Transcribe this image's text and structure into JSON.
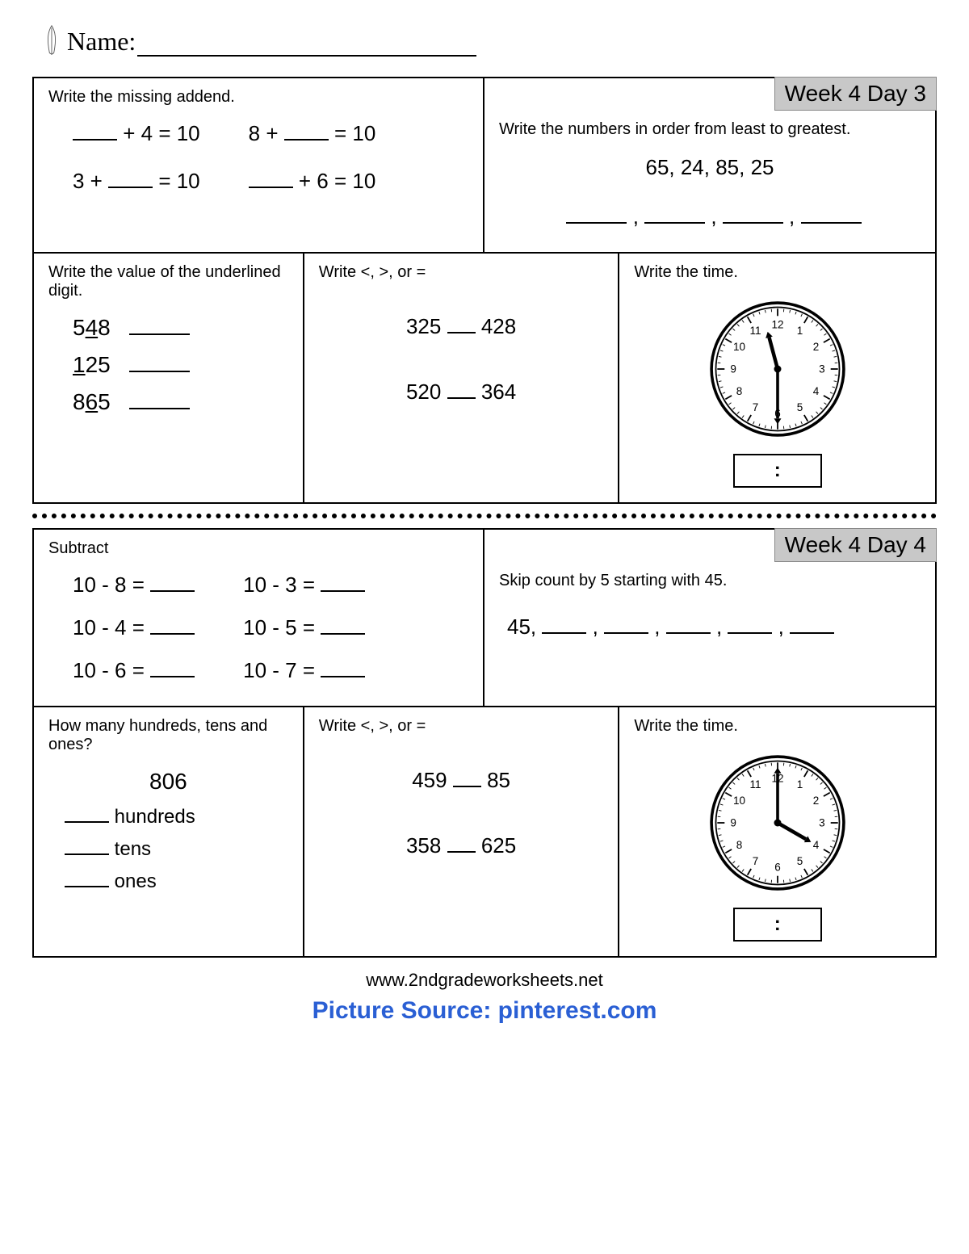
{
  "name_label": "Name:",
  "day3": {
    "tag": "Week 4 Day 3",
    "box1": {
      "instr": "Write the missing addend.",
      "p1a": "___ + 4 = 10",
      "p1b": "8 + ___ = 10",
      "p2a": "3 + ___ = 10",
      "p2b": "___ + 6 = 10"
    },
    "box2": {
      "instr": "Write the numbers in order from least to greatest.",
      "numbers": "65, 24, 85, 25"
    },
    "box3": {
      "instr": "Write the value of the underlined digit.",
      "n1_pre": "5",
      "n1_u": "4",
      "n1_post": "8",
      "n2_pre": "",
      "n2_u": "1",
      "n2_post": "25",
      "n3_pre": "8",
      "n3_u": "6",
      "n3_post": "5"
    },
    "box4": {
      "instr": "Write <, >, or =",
      "c1l": "325",
      "c1r": "428",
      "c2l": "520",
      "c2r": "364"
    },
    "box5": {
      "instr": "Write the time.",
      "hour_angle": -15,
      "minute_angle": 180,
      "colon": ":"
    }
  },
  "day4": {
    "tag": "Week 4 Day 4",
    "box1": {
      "instr": "Subtract",
      "p1a": "10 - 8 =",
      "p1b": "10 - 3 =",
      "p2a": "10 - 4 =",
      "p2b": "10 - 5 =",
      "p3a": "10 - 6 =",
      "p3b": "10 - 7 ="
    },
    "box2": {
      "instr": "Skip count by 5 starting with 45.",
      "start": "45,"
    },
    "box3": {
      "instr": "How many hundreds, tens and ones?",
      "number": "806",
      "l1": "hundreds",
      "l2": "tens",
      "l3": "ones"
    },
    "box4": {
      "instr": "Write <, >, or =",
      "c1l": "459",
      "c1r": "85",
      "c2l": "358",
      "c2r": "625"
    },
    "box5": {
      "instr": "Write the time.",
      "hour_angle": 120,
      "minute_angle": 0,
      "colon": ":"
    }
  },
  "footer": "www.2ndgradeworksheets.net",
  "source": "Picture Source: pinterest.com"
}
